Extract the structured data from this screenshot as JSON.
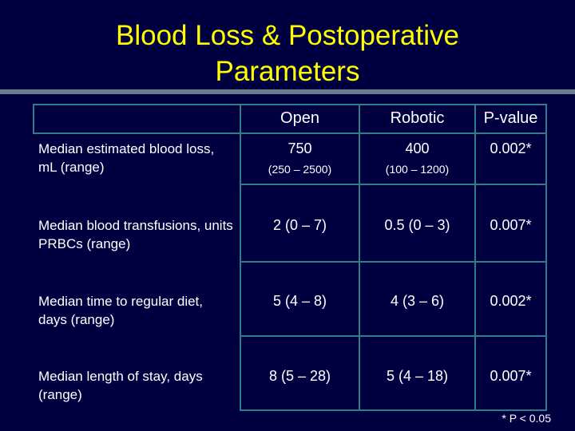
{
  "slide": {
    "title_line1": "Blood Loss & Postoperative",
    "title_line2": "Parameters",
    "footnote": "* P < 0.05"
  },
  "table": {
    "headers": [
      "Open",
      "Robotic",
      "P-value"
    ],
    "rows": [
      {
        "label": "Median estimated blood loss, mL (range)",
        "open": "750",
        "open_range": "(250 – 2500)",
        "robotic": "400",
        "robotic_range": "(100 – 1200)",
        "p_value": "0.002*"
      },
      {
        "label": "Median blood transfusions, units PRBCs (range)",
        "open": "2 (0 – 7)",
        "robotic": "0.5 (0 – 3)",
        "p_value": "0.007*"
      },
      {
        "label": "Median time to regular diet, days (range)",
        "open": "5 (4 – 8)",
        "robotic": "4 (3 – 6)",
        "p_value": "0.002*"
      },
      {
        "label": "Median length of stay, days (range)",
        "open": "8 (5 – 28)",
        "robotic": "5 (4 – 18)",
        "p_value": "0.007*"
      }
    ]
  },
  "colors": {
    "background": "#000040",
    "title": "#ffff00",
    "grid": "#2f7d86",
    "rule": "#6a7f8e",
    "text": "#ffffff"
  }
}
